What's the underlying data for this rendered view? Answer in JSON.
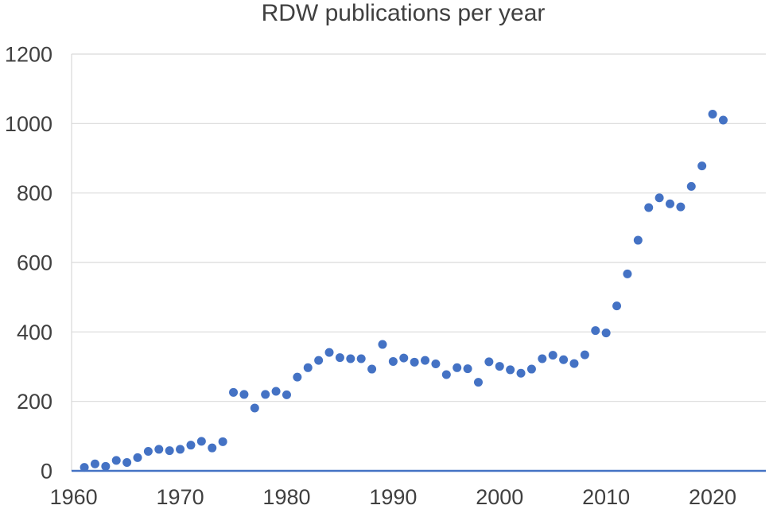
{
  "chart_data": {
    "type": "scatter",
    "title": "RDW publications per year",
    "xlabel": "",
    "ylabel": "",
    "xlim": [
      1959.8,
      2025
    ],
    "ylim": [
      0,
      1200
    ],
    "x_ticks": [
      1960,
      1970,
      1980,
      1990,
      2000,
      2010,
      2020
    ],
    "y_ticks": [
      0,
      200,
      400,
      600,
      800,
      1000,
      1200
    ],
    "grid": "horizontal",
    "legend": "none",
    "marker_color": "#4472C4",
    "axis_line_color": "#4472C4",
    "gridline_color": "#D9D9D9",
    "text_color": "#404040",
    "years": [
      1961,
      1962,
      1963,
      1964,
      1965,
      1966,
      1967,
      1968,
      1969,
      1970,
      1971,
      1972,
      1973,
      1974,
      1975,
      1976,
      1977,
      1978,
      1979,
      1980,
      1981,
      1982,
      1983,
      1984,
      1985,
      1986,
      1987,
      1988,
      1989,
      1990,
      1991,
      1992,
      1993,
      1994,
      1995,
      1996,
      1997,
      1998,
      1999,
      2000,
      2001,
      2002,
      2003,
      2004,
      2005,
      2006,
      2007,
      2008,
      2009,
      2010,
      2011,
      2012,
      2013,
      2014,
      2015,
      2016,
      2017,
      2018,
      2019,
      2020,
      2021
    ],
    "values": [
      10,
      20,
      13,
      30,
      24,
      38,
      56,
      62,
      58,
      62,
      74,
      85,
      66,
      84,
      226,
      220,
      181,
      220,
      229,
      219,
      270,
      297,
      318,
      341,
      326,
      323,
      323,
      293,
      364,
      315,
      325,
      313,
      318,
      308,
      277,
      297,
      294,
      255,
      314,
      301,
      291,
      281,
      293,
      323,
      333,
      320,
      309,
      334,
      404,
      397,
      475,
      567,
      664,
      758,
      786,
      769,
      760,
      819,
      878,
      1027,
      1010
    ]
  }
}
